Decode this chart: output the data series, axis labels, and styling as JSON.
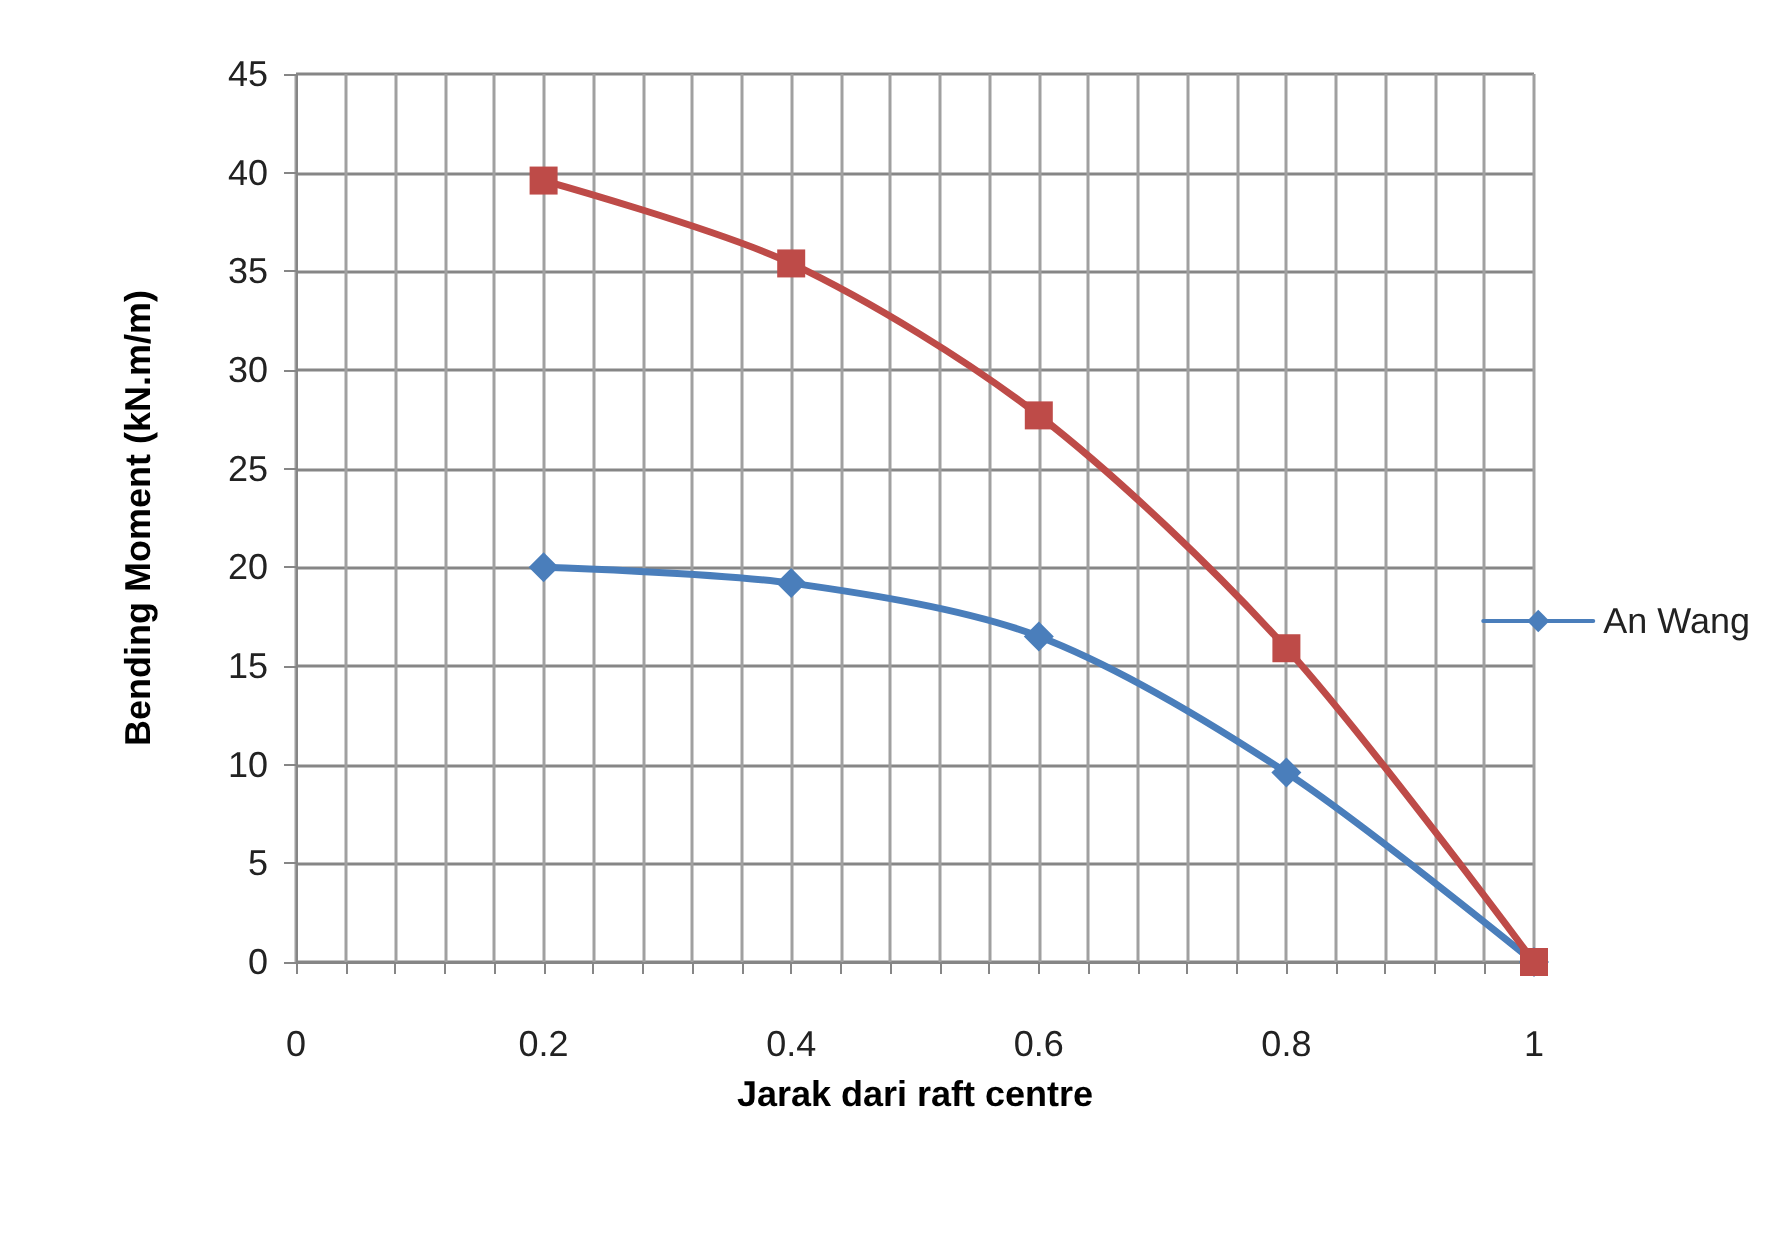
{
  "chart_data": {
    "type": "line",
    "xlabel": "Jarak dari raft centre",
    "ylabel": "Bending Moment (kN.m/m)",
    "x": [
      0.2,
      0.4,
      0.6,
      0.8,
      1
    ],
    "series": [
      {
        "name": "An Wang",
        "color": "#4a7ebb",
        "marker": "diamond",
        "values": [
          20,
          19.2,
          16.5,
          9.6,
          0
        ]
      },
      {
        "color": "#be4b48",
        "marker": "square",
        "values": [
          39.6,
          35.4,
          27.7,
          15.9,
          0
        ]
      }
    ],
    "xlim": [
      0,
      1
    ],
    "xticks": [
      0,
      {
        "value": 0.04,
        "label": null
      },
      {
        "value": 0.08,
        "label": null
      },
      {
        "value": 0.12,
        "label": null
      },
      {
        "value": 0.16,
        "label": null
      },
      0.2,
      {
        "value": 0.24,
        "label": null
      },
      {
        "value": 0.28,
        "label": null
      },
      {
        "value": 0.32,
        "label": null
      },
      {
        "value": 0.36,
        "label": null
      },
      0.4,
      {
        "value": 0.44,
        "label": null
      },
      {
        "value": 0.48,
        "label": null
      },
      {
        "value": 0.52,
        "label": null
      },
      {
        "value": 0.56,
        "label": null
      },
      0.6,
      {
        "value": 0.64,
        "label": null
      },
      {
        "value": 0.68,
        "label": null
      },
      {
        "value": 0.72,
        "label": null
      },
      {
        "value": 0.76,
        "label": null
      },
      0.8,
      {
        "value": 0.84,
        "label": null
      },
      {
        "value": 0.88,
        "label": null
      },
      {
        "value": 0.92,
        "label": null
      },
      {
        "value": 0.96,
        "label": null
      },
      1
    ],
    "ylim": [
      0,
      45
    ],
    "yticks": [
      0,
      5,
      10,
      15,
      20,
      25,
      30,
      35,
      40,
      45
    ],
    "grid": true,
    "legend": "right",
    "line_style": "solid"
  }
}
